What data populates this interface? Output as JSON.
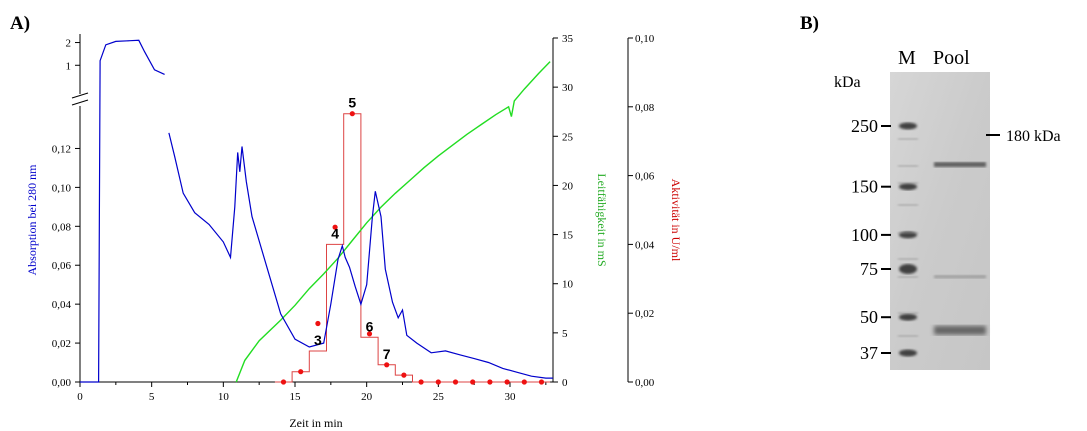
{
  "panel_a_label": "A)",
  "panel_b_label": "B)",
  "chart_data": {
    "type": "line",
    "xlabel": "Zeit in min",
    "x_ticks": [
      0,
      5,
      10,
      15,
      20,
      25,
      30
    ],
    "xlim": [
      0,
      33
    ],
    "y_left": {
      "label": "Absorption bei 280 nm",
      "ticks_lower": [
        "0,00",
        "0,02",
        "0,04",
        "0,06",
        "0,08",
        "0,10",
        "0,12"
      ],
      "ticks_upper": [
        "1",
        "2"
      ],
      "lim_lower": [
        0,
        0.13
      ],
      "lim_upper": [
        0,
        2.2
      ],
      "color": "#0000cc"
    },
    "y_right_1": {
      "label": "Leitfähigkeit in mS",
      "ticks": [
        0,
        5,
        10,
        15,
        20,
        25,
        30,
        35
      ],
      "lim": [
        0,
        35
      ],
      "color": "#22dd22"
    },
    "y_right_2": {
      "label": "Aktivität in U/ml",
      "ticks": [
        "0,00",
        "0,02",
        "0,04",
        "0,06",
        "0,08",
        "0,10"
      ],
      "lim": [
        0,
        0.1
      ],
      "color": "#dd0000"
    },
    "series": [
      {
        "axis": "absorption",
        "color": "#0000cc",
        "points": [
          [
            0,
            0
          ],
          [
            1.3,
            0
          ],
          [
            1.4,
            1.2
          ],
          [
            1.8,
            1.9
          ],
          [
            2.5,
            2.05
          ],
          [
            3.5,
            2.08
          ],
          [
            4.1,
            2.1
          ],
          [
            4.5,
            1.6
          ],
          [
            5.2,
            0.8
          ],
          [
            5.9,
            0.6
          ],
          "break",
          [
            6.2,
            0.128
          ],
          [
            6.6,
            0.116
          ],
          [
            7.2,
            0.097
          ],
          [
            8.0,
            0.087
          ],
          [
            9.0,
            0.081
          ],
          [
            10.0,
            0.072
          ],
          [
            10.5,
            0.064
          ],
          [
            10.8,
            0.09
          ],
          [
            11.0,
            0.118
          ],
          [
            11.15,
            0.108
          ],
          [
            11.3,
            0.121
          ],
          [
            11.6,
            0.103
          ],
          [
            12.0,
            0.085
          ],
          [
            13.0,
            0.06
          ],
          [
            14.0,
            0.035
          ],
          [
            15.0,
            0.022
          ],
          [
            16.0,
            0.018
          ],
          [
            17.0,
            0.02
          ],
          [
            17.5,
            0.04
          ],
          [
            18.0,
            0.063
          ],
          [
            18.3,
            0.07
          ],
          [
            18.5,
            0.064
          ],
          [
            18.8,
            0.059
          ],
          [
            19.2,
            0.049
          ],
          [
            19.6,
            0.04
          ],
          [
            20.0,
            0.05
          ],
          [
            20.4,
            0.085
          ],
          [
            20.6,
            0.098
          ],
          [
            21.0,
            0.085
          ],
          [
            21.3,
            0.058
          ],
          [
            21.8,
            0.041
          ],
          [
            22.2,
            0.033
          ],
          [
            22.5,
            0.037
          ],
          [
            22.8,
            0.024
          ],
          [
            23.5,
            0.02
          ],
          [
            24.5,
            0.015
          ],
          [
            25.5,
            0.016
          ],
          [
            26.5,
            0.014
          ],
          [
            27.5,
            0.012
          ],
          [
            28.5,
            0.01
          ],
          [
            29.5,
            0.007
          ],
          [
            30.5,
            0.005
          ],
          [
            31.5,
            0.003
          ],
          [
            32.5,
            0.002
          ],
          [
            33,
            0.002
          ]
        ]
      },
      {
        "axis": "conductivity",
        "color": "#22dd22",
        "points": [
          [
            10.9,
            0
          ],
          [
            11.5,
            2.2
          ],
          [
            12.5,
            4.2
          ],
          [
            14,
            6.3
          ],
          [
            15,
            7.8
          ],
          [
            16,
            9.5
          ],
          [
            17,
            11.0
          ],
          [
            18,
            12.6
          ],
          [
            19,
            14.4
          ],
          [
            20,
            16.2
          ],
          [
            21,
            17.8
          ],
          [
            22,
            19.2
          ],
          [
            23,
            20.5
          ],
          [
            24,
            21.8
          ],
          [
            25,
            23.0
          ],
          [
            26,
            24.1
          ],
          [
            27,
            25.2
          ],
          [
            28,
            26.2
          ],
          [
            29,
            27.2
          ],
          [
            29.9,
            28.0
          ],
          [
            30.1,
            27.0
          ],
          [
            30.3,
            28.6
          ],
          [
            31,
            29.8
          ],
          [
            32,
            31.4
          ],
          [
            32.8,
            32.6
          ]
        ]
      }
    ],
    "activity_fractions": [
      {
        "x_start": 13.6,
        "x_end": 14.8,
        "value": 0
      },
      {
        "x_start": 14.8,
        "x_end": 16.0,
        "value": 0.003
      },
      {
        "x_start": 16.0,
        "x_end": 17.2,
        "value": 0.009,
        "label": "3"
      },
      {
        "x_start": 17.2,
        "x_end": 18.4,
        "value": 0.04,
        "label": "4"
      },
      {
        "x_start": 18.4,
        "x_end": 19.6,
        "value": 0.078,
        "label": "5"
      },
      {
        "x_start": 19.6,
        "x_end": 20.8,
        "value": 0.013,
        "label": "6"
      },
      {
        "x_start": 20.8,
        "x_end": 22.0,
        "value": 0.005,
        "label": "7"
      },
      {
        "x_start": 22.0,
        "x_end": 23.2,
        "value": 0.002
      },
      {
        "x_start": 23.2,
        "x_end": 24.4,
        "value": 0.0
      },
      {
        "x_start": 24.4,
        "x_end": 25.6,
        "value": 0.0
      },
      {
        "x_start": 25.6,
        "x_end": 26.8,
        "value": 0.0
      },
      {
        "x_start": 26.8,
        "x_end": 28.0,
        "value": 0.0
      },
      {
        "x_start": 28.0,
        "x_end": 29.2,
        "value": 0.0
      },
      {
        "x_start": 29.2,
        "x_end": 30.4,
        "value": 0.0
      },
      {
        "x_start": 30.4,
        "x_end": 31.6,
        "value": 0.0
      },
      {
        "x_start": 31.6,
        "x_end": 32.8,
        "value": 0.0
      }
    ],
    "activity_points": [
      [
        14.2,
        0.0
      ],
      [
        15.4,
        0.003
      ],
      [
        16.6,
        0.017
      ],
      [
        17.8,
        0.045
      ],
      [
        19.0,
        0.078
      ],
      [
        20.2,
        0.014
      ],
      [
        21.4,
        0.005
      ],
      [
        22.6,
        0.002
      ],
      [
        23.8,
        0.0
      ],
      [
        25.0,
        0.0
      ],
      [
        26.2,
        0.0
      ],
      [
        27.4,
        0.0
      ],
      [
        28.6,
        0.0
      ],
      [
        29.8,
        0.0
      ],
      [
        31.0,
        0.0
      ],
      [
        32.2,
        0.0
      ]
    ]
  },
  "gel": {
    "lane_labels": [
      "M",
      "Pool"
    ],
    "unit_label": "kDa",
    "marker_ladder": [
      "250",
      "150",
      "100",
      "75",
      "50",
      "37"
    ],
    "marker_band_kda": [
      250,
      150,
      100,
      75,
      50,
      37
    ],
    "annotation": "180 kDa",
    "sample_band_kda": [
      180,
      70,
      45
    ]
  }
}
